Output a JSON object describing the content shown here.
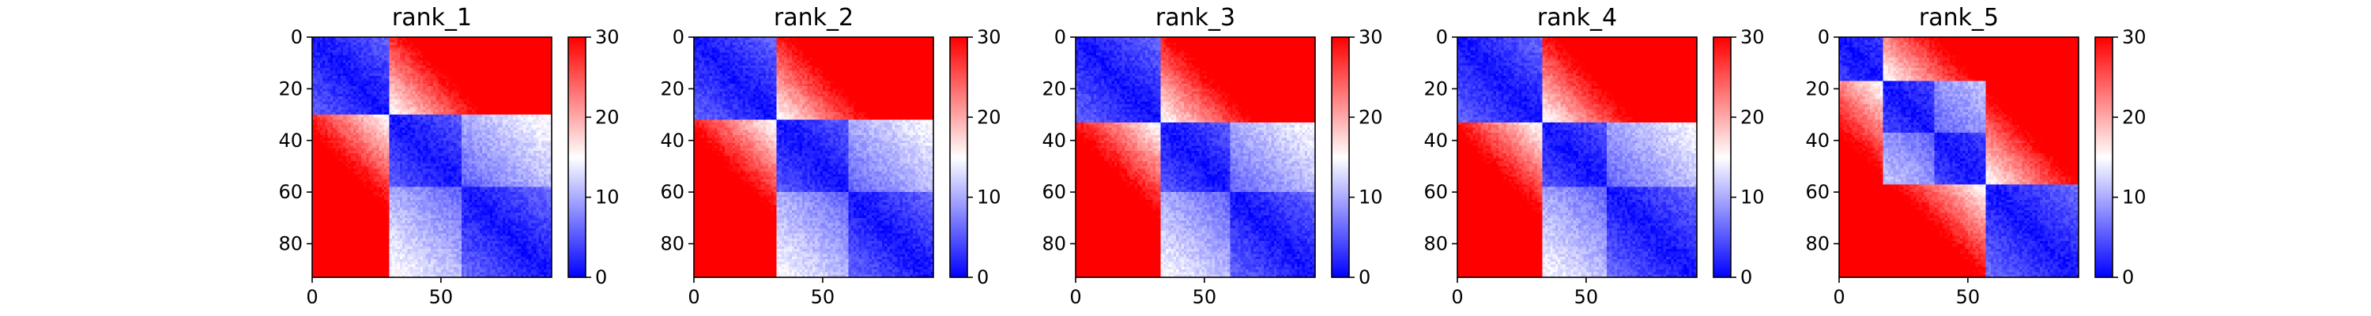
{
  "chart_data": [
    {
      "type": "heatmap",
      "title": "rank_1",
      "xlim": [
        0,
        93
      ],
      "ylim": [
        93,
        0
      ],
      "x_ticks": [
        {
          "value": 0,
          "label": "0"
        },
        {
          "value": 50,
          "label": "50"
        }
      ],
      "y_ticks": [
        {
          "value": 0,
          "label": "0"
        },
        {
          "value": 20,
          "label": "20"
        },
        {
          "value": 40,
          "label": "40"
        },
        {
          "value": 60,
          "label": "60"
        },
        {
          "value": 80,
          "label": "80"
        }
      ],
      "colorbar": {
        "min": 0,
        "max": 30,
        "colormap": "bwr",
        "ticks": [
          {
            "value": 0,
            "label": "0"
          },
          {
            "value": 10,
            "label": "10"
          },
          {
            "value": 20,
            "label": "20"
          },
          {
            "value": 30,
            "label": "30"
          }
        ]
      },
      "structure": {
        "matrix_size": 93,
        "domain_boundaries": [
          30,
          93
        ],
        "sub_boundaries": [
          58
        ]
      }
    },
    {
      "type": "heatmap",
      "title": "rank_2",
      "xlim": [
        0,
        93
      ],
      "ylim": [
        93,
        0
      ],
      "x_ticks": [
        {
          "value": 0,
          "label": "0"
        },
        {
          "value": 50,
          "label": "50"
        }
      ],
      "y_ticks": [
        {
          "value": 0,
          "label": "0"
        },
        {
          "value": 20,
          "label": "20"
        },
        {
          "value": 40,
          "label": "40"
        },
        {
          "value": 60,
          "label": "60"
        },
        {
          "value": 80,
          "label": "80"
        }
      ],
      "colorbar": {
        "min": 0,
        "max": 30,
        "colormap": "bwr",
        "ticks": [
          {
            "value": 0,
            "label": "0"
          },
          {
            "value": 10,
            "label": "10"
          },
          {
            "value": 20,
            "label": "20"
          },
          {
            "value": 30,
            "label": "30"
          }
        ]
      },
      "structure": {
        "matrix_size": 93,
        "domain_boundaries": [
          32,
          93
        ],
        "sub_boundaries": [
          60
        ]
      }
    },
    {
      "type": "heatmap",
      "title": "rank_3",
      "xlim": [
        0,
        93
      ],
      "ylim": [
        93,
        0
      ],
      "x_ticks": [
        {
          "value": 0,
          "label": "0"
        },
        {
          "value": 50,
          "label": "50"
        }
      ],
      "y_ticks": [
        {
          "value": 0,
          "label": "0"
        },
        {
          "value": 20,
          "label": "20"
        },
        {
          "value": 40,
          "label": "40"
        },
        {
          "value": 60,
          "label": "60"
        },
        {
          "value": 80,
          "label": "80"
        }
      ],
      "colorbar": {
        "min": 0,
        "max": 30,
        "colormap": "bwr",
        "ticks": [
          {
            "value": 0,
            "label": "0"
          },
          {
            "value": 10,
            "label": "10"
          },
          {
            "value": 20,
            "label": "20"
          },
          {
            "value": 30,
            "label": "30"
          }
        ]
      },
      "structure": {
        "matrix_size": 93,
        "domain_boundaries": [
          33,
          93
        ],
        "sub_boundaries": [
          60
        ]
      }
    },
    {
      "type": "heatmap",
      "title": "rank_4",
      "xlim": [
        0,
        93
      ],
      "ylim": [
        93,
        0
      ],
      "x_ticks": [
        {
          "value": 0,
          "label": "0"
        },
        {
          "value": 50,
          "label": "50"
        }
      ],
      "y_ticks": [
        {
          "value": 0,
          "label": "0"
        },
        {
          "value": 20,
          "label": "20"
        },
        {
          "value": 40,
          "label": "40"
        },
        {
          "value": 60,
          "label": "60"
        },
        {
          "value": 80,
          "label": "80"
        }
      ],
      "colorbar": {
        "min": 0,
        "max": 30,
        "colormap": "bwr",
        "ticks": [
          {
            "value": 0,
            "label": "0"
          },
          {
            "value": 10,
            "label": "10"
          },
          {
            "value": 20,
            "label": "20"
          },
          {
            "value": 30,
            "label": "30"
          }
        ]
      },
      "structure": {
        "matrix_size": 93,
        "domain_boundaries": [
          33,
          93
        ],
        "sub_boundaries": [
          58
        ]
      }
    },
    {
      "type": "heatmap",
      "title": "rank_5",
      "xlim": [
        0,
        93
      ],
      "ylim": [
        93,
        0
      ],
      "x_ticks": [
        {
          "value": 0,
          "label": "0"
        },
        {
          "value": 50,
          "label": "50"
        }
      ],
      "y_ticks": [
        {
          "value": 0,
          "label": "0"
        },
        {
          "value": 20,
          "label": "20"
        },
        {
          "value": 40,
          "label": "40"
        },
        {
          "value": 60,
          "label": "60"
        },
        {
          "value": 80,
          "label": "80"
        }
      ],
      "colorbar": {
        "min": 0,
        "max": 30,
        "colormap": "bwr",
        "ticks": [
          {
            "value": 0,
            "label": "0"
          },
          {
            "value": 10,
            "label": "10"
          },
          {
            "value": 20,
            "label": "20"
          },
          {
            "value": 30,
            "label": "30"
          }
        ]
      },
      "structure": {
        "matrix_size": 93,
        "domain_boundaries": [
          17,
          57,
          93
        ],
        "sub_boundaries": [
          37
        ]
      }
    }
  ]
}
